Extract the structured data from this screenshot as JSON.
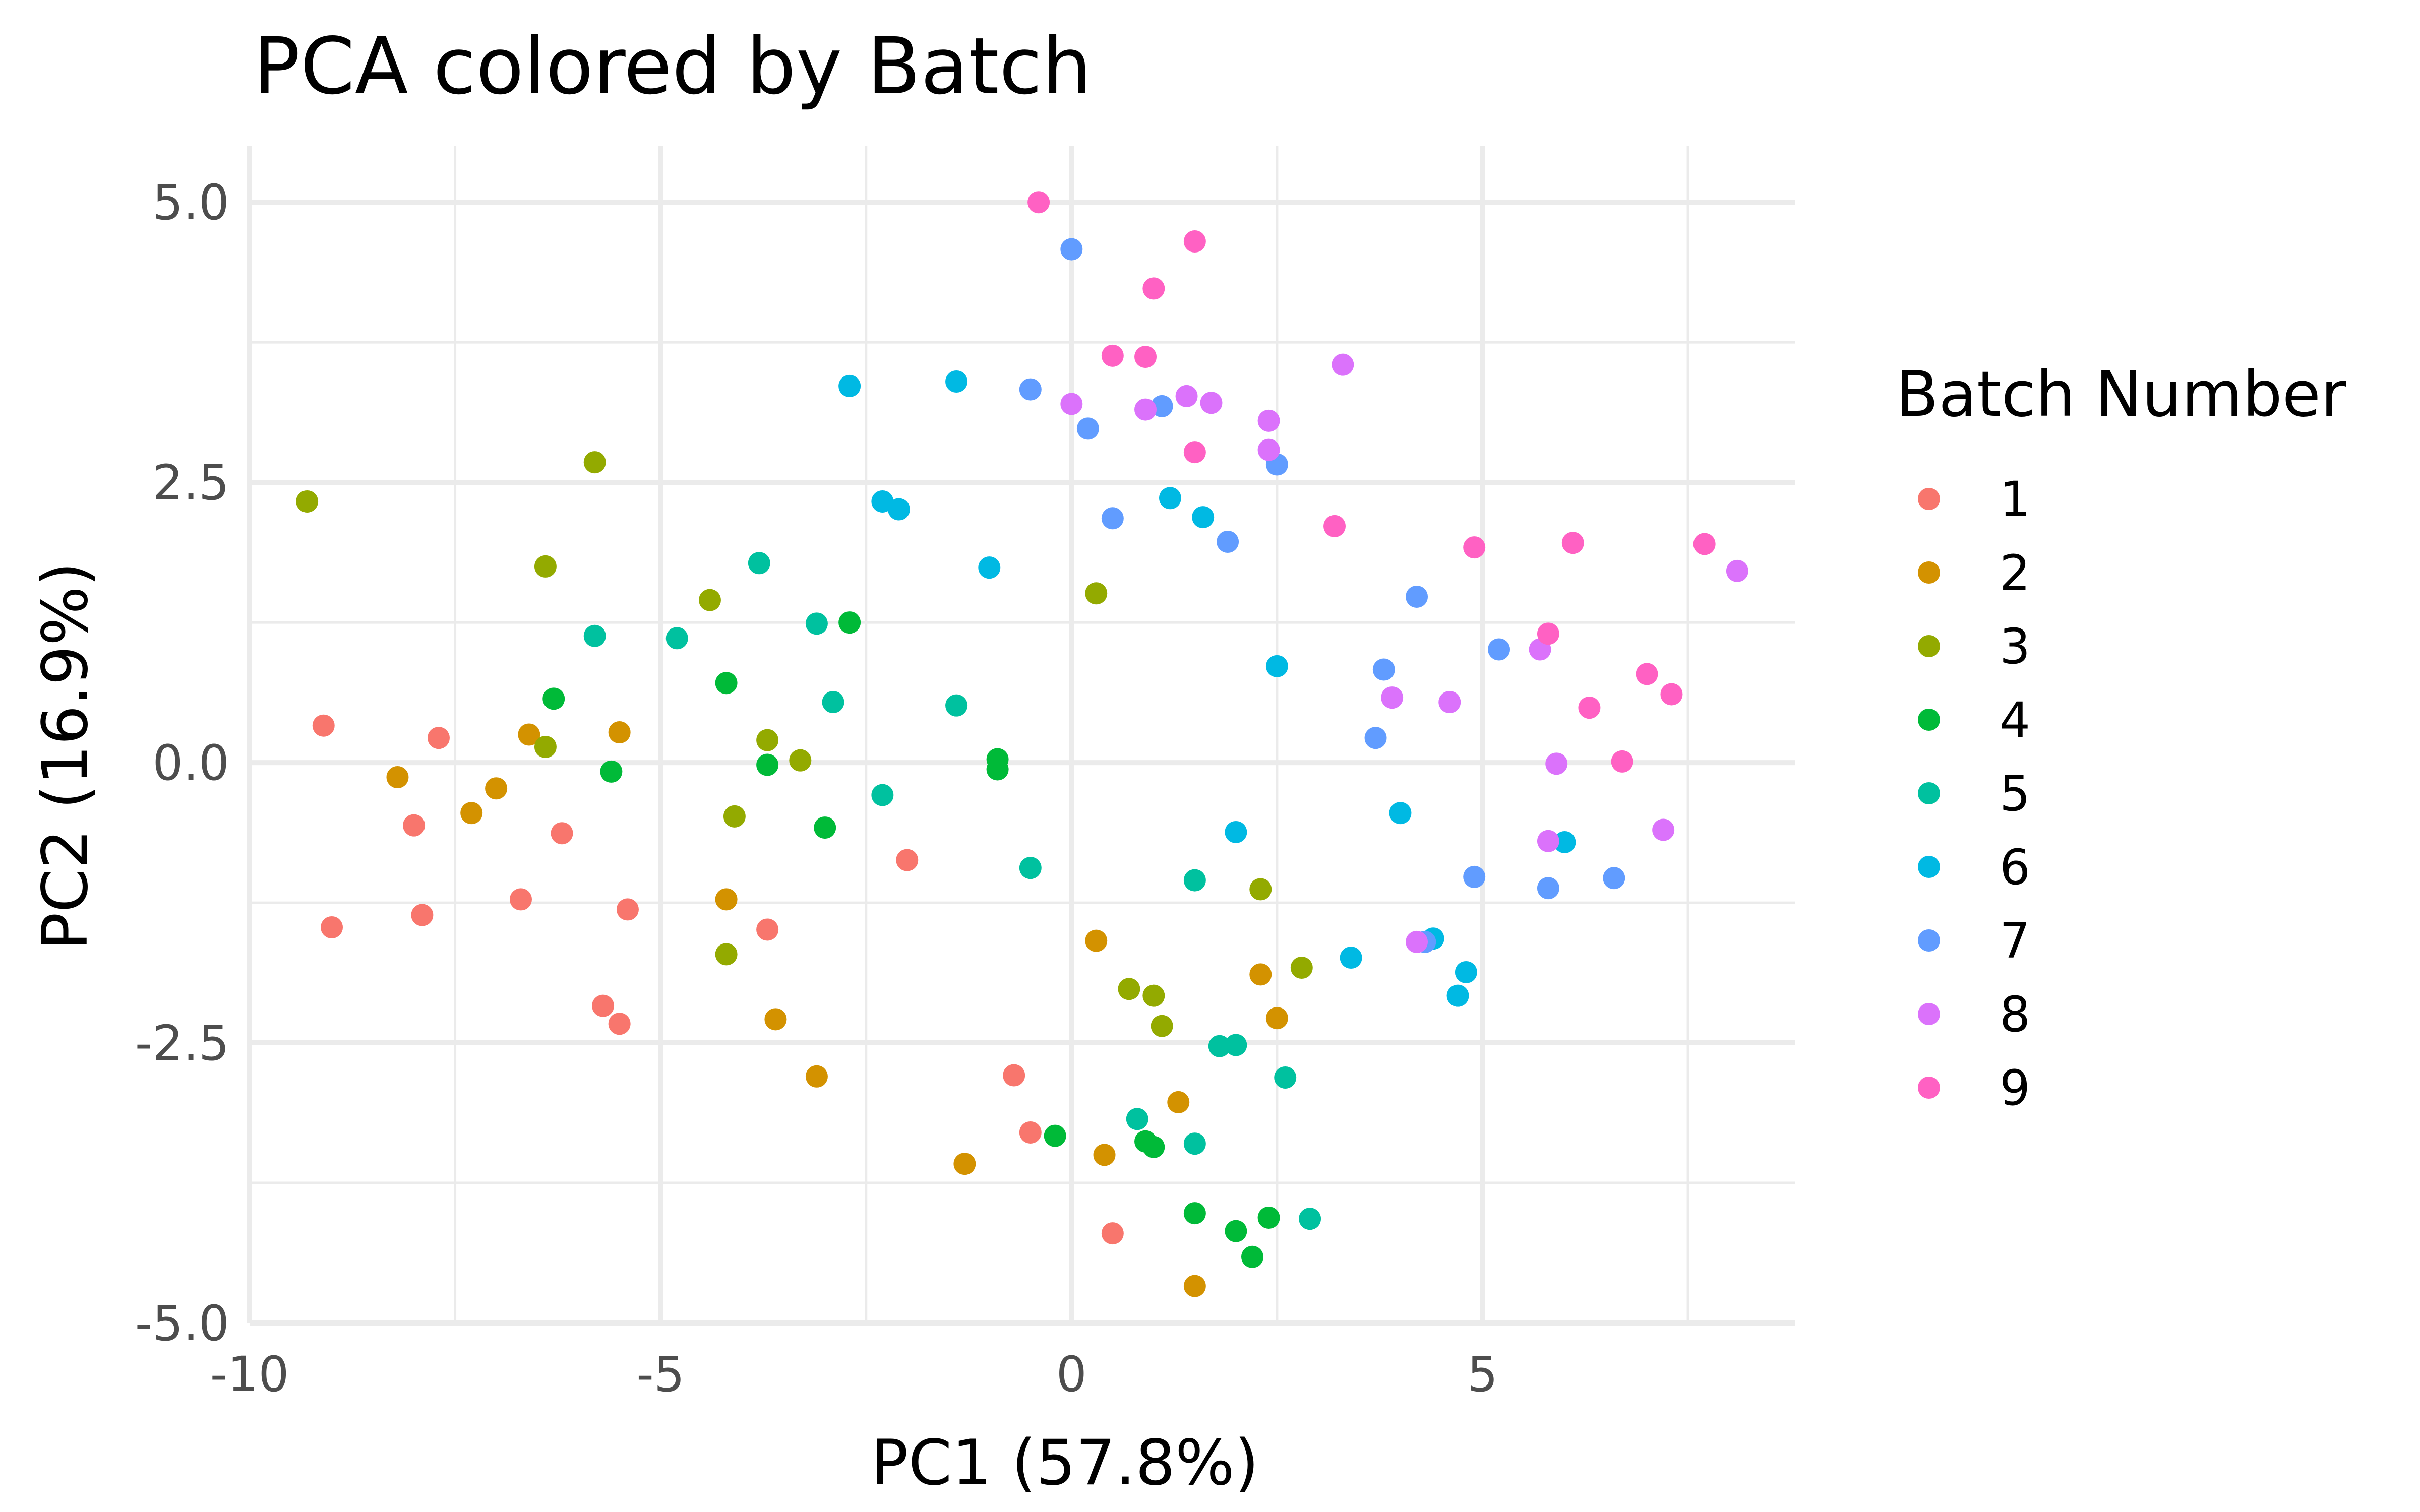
{
  "chart_data": {
    "type": "scatter",
    "title": "PCA colored by Batch",
    "xlabel": "PC1 (57.8%)",
    "ylabel": "PC2 (16.9%)",
    "xlim": [
      -10,
      8.8
    ],
    "ylim": [
      -5,
      5.5
    ],
    "x_ticks": [
      -10,
      -5,
      0,
      5
    ],
    "x_tick_labels": [
      "-10",
      "-5",
      "0",
      "5"
    ],
    "y_ticks": [
      -5,
      -2.5,
      0,
      2.5,
      5
    ],
    "y_tick_labels": [
      "-5.0",
      "-2.5",
      "0.0",
      "2.5",
      "5.0"
    ],
    "grid": true,
    "legend": {
      "title": "Batch Number",
      "position": "right"
    },
    "series": [
      {
        "name": "1",
        "color": "#F8766D",
        "points": [
          [
            -9.1,
            0.33
          ],
          [
            -7.7,
            0.22
          ],
          [
            -8.0,
            -0.56
          ],
          [
            -6.2,
            -0.63
          ],
          [
            -9.0,
            -1.47
          ],
          [
            -7.9,
            -1.36
          ],
          [
            -6.7,
            -1.22
          ],
          [
            -5.4,
            -1.31
          ],
          [
            -5.7,
            -2.17
          ],
          [
            -5.5,
            -2.33
          ],
          [
            -3.7,
            -1.49
          ],
          [
            -2.0,
            -0.87
          ],
          [
            -0.7,
            -2.79
          ],
          [
            -0.5,
            -3.3
          ],
          [
            0.5,
            -4.2
          ]
        ]
      },
      {
        "name": "2",
        "color": "#D39200",
        "points": [
          [
            -8.2,
            -0.13
          ],
          [
            -7.3,
            -0.45
          ],
          [
            -7.0,
            -0.23
          ],
          [
            -6.6,
            0.25
          ],
          [
            -5.5,
            0.27
          ],
          [
            -4.2,
            -1.22
          ],
          [
            -3.6,
            -2.29
          ],
          [
            -3.1,
            -2.8
          ],
          [
            -1.3,
            -3.58
          ],
          [
            0.3,
            -1.59
          ],
          [
            0.4,
            -3.5
          ],
          [
            1.3,
            -3.03
          ],
          [
            2.3,
            -1.89
          ],
          [
            2.5,
            -2.28
          ],
          [
            1.5,
            -4.67
          ]
        ]
      },
      {
        "name": "3",
        "color": "#93AA00",
        "points": [
          [
            -9.3,
            2.33
          ],
          [
            -5.8,
            2.68
          ],
          [
            -6.4,
            1.75
          ],
          [
            -4.4,
            1.45
          ],
          [
            -6.4,
            0.14
          ],
          [
            -3.7,
            0.2
          ],
          [
            -3.3,
            0.02
          ],
          [
            -4.1,
            -0.48
          ],
          [
            -4.2,
            -1.71
          ],
          [
            0.3,
            1.51
          ],
          [
            0.7,
            -2.02
          ],
          [
            1.0,
            -2.08
          ],
          [
            1.1,
            -2.35
          ],
          [
            2.3,
            -1.13
          ],
          [
            2.8,
            -1.83
          ]
        ]
      },
      {
        "name": "4",
        "color": "#00BA38",
        "points": [
          [
            -6.3,
            0.57
          ],
          [
            -5.6,
            -0.08
          ],
          [
            -4.2,
            0.71
          ],
          [
            -2.7,
            1.25
          ],
          [
            -3.7,
            -0.02
          ],
          [
            -3.0,
            -0.58
          ],
          [
            -0.9,
            0.03
          ],
          [
            -0.9,
            -0.06
          ],
          [
            -0.2,
            -3.33
          ],
          [
            0.9,
            -3.38
          ],
          [
            1.0,
            -3.43
          ],
          [
            1.5,
            -4.02
          ],
          [
            2.0,
            -4.18
          ],
          [
            2.4,
            -4.06
          ],
          [
            2.2,
            -4.41
          ]
        ]
      },
      {
        "name": "5",
        "color": "#00C19F",
        "points": [
          [
            -5.8,
            1.13
          ],
          [
            -4.8,
            1.11
          ],
          [
            -3.8,
            1.78
          ],
          [
            -3.1,
            1.24
          ],
          [
            -2.9,
            0.54
          ],
          [
            -2.3,
            -0.29
          ],
          [
            -1.4,
            0.51
          ],
          [
            -0.5,
            -0.94
          ],
          [
            0.8,
            -3.18
          ],
          [
            1.5,
            -1.05
          ],
          [
            1.5,
            -3.4
          ],
          [
            1.8,
            -2.53
          ],
          [
            2.0,
            -2.52
          ],
          [
            2.6,
            -2.81
          ],
          [
            2.9,
            -4.07
          ]
        ]
      },
      {
        "name": "6",
        "color": "#00B9E3",
        "points": [
          [
            -2.7,
            3.36
          ],
          [
            -1.4,
            3.4
          ],
          [
            -2.3,
            2.33
          ],
          [
            -2.1,
            2.26
          ],
          [
            -1.0,
            1.74
          ],
          [
            1.2,
            2.36
          ],
          [
            1.6,
            2.19
          ],
          [
            2.5,
            0.86
          ],
          [
            2.0,
            -0.62
          ],
          [
            3.4,
            -1.74
          ],
          [
            4.0,
            -0.45
          ],
          [
            4.4,
            -1.57
          ],
          [
            4.8,
            -1.87
          ],
          [
            4.7,
            -2.08
          ],
          [
            6.0,
            -0.71
          ]
        ]
      },
      {
        "name": "7",
        "color": "#619CFF",
        "points": [
          [
            0.0,
            4.58
          ],
          [
            -0.5,
            3.33
          ],
          [
            0.2,
            2.98
          ],
          [
            1.1,
            3.18
          ],
          [
            0.5,
            2.18
          ],
          [
            1.9,
            1.97
          ],
          [
            2.5,
            2.66
          ],
          [
            4.2,
            1.48
          ],
          [
            3.8,
            0.83
          ],
          [
            3.7,
            0.22
          ],
          [
            5.2,
            1.01
          ],
          [
            4.9,
            -1.02
          ],
          [
            4.3,
            -1.6
          ],
          [
            5.8,
            -1.12
          ],
          [
            6.6,
            -1.03
          ]
        ]
      },
      {
        "name": "8",
        "color": "#DB72FB",
        "points": [
          [
            0.0,
            3.2
          ],
          [
            0.9,
            3.15
          ],
          [
            1.4,
            3.27
          ],
          [
            1.7,
            3.21
          ],
          [
            2.4,
            3.05
          ],
          [
            2.4,
            2.79
          ],
          [
            3.3,
            3.55
          ],
          [
            3.9,
            0.58
          ],
          [
            4.6,
            0.54
          ],
          [
            5.7,
            1.01
          ],
          [
            5.9,
            -0.01
          ],
          [
            5.8,
            -0.7
          ],
          [
            7.2,
            -0.6
          ],
          [
            8.1,
            1.71
          ],
          [
            4.2,
            -1.6
          ]
        ]
      },
      {
        "name": "9",
        "color": "#FF61C3",
        "points": [
          [
            -0.4,
            5.0
          ],
          [
            1.5,
            4.65
          ],
          [
            1.0,
            4.23
          ],
          [
            0.5,
            3.63
          ],
          [
            0.9,
            3.62
          ],
          [
            1.5,
            2.77
          ],
          [
            3.2,
            2.11
          ],
          [
            4.9,
            1.92
          ],
          [
            6.1,
            1.96
          ],
          [
            5.8,
            1.15
          ],
          [
            6.3,
            0.49
          ],
          [
            6.7,
            0.01
          ],
          [
            7.0,
            0.79
          ],
          [
            7.3,
            0.61
          ],
          [
            7.7,
            1.95
          ]
        ]
      }
    ]
  }
}
